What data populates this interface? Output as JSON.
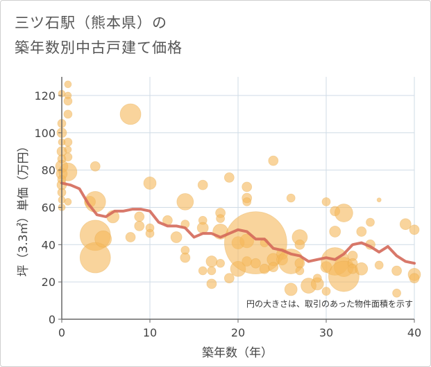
{
  "chart_data": {
    "type": "scatter",
    "title_lines": [
      "三ツ石駅（熊本県）の",
      "築年数別中古戸建て価格"
    ],
    "xlabel": "築年数（年）",
    "ylabel": "坪（3.3㎡）単価（万円）",
    "xlim": [
      0,
      40
    ],
    "ylim": [
      0,
      130
    ],
    "xticks": [
      "0",
      "10",
      "20",
      "30",
      "40"
    ],
    "yticks": [
      "0",
      "20",
      "40",
      "60",
      "80",
      "100",
      "120"
    ],
    "xtick_values": [
      0,
      10,
      20,
      30,
      40
    ],
    "ytick_values": [
      0,
      20,
      40,
      60,
      80,
      100,
      120
    ],
    "grid": true,
    "note": "円の大きさは、取引のあった物件面積を示す",
    "bubble_color": "#f5b75a",
    "line_color": "#d4695a",
    "bubbles": [
      {
        "x": 0,
        "y": 121,
        "s": 5
      },
      {
        "x": 0,
        "y": 105,
        "s": 6
      },
      {
        "x": 0,
        "y": 100,
        "s": 7
      },
      {
        "x": 0,
        "y": 95,
        "s": 5
      },
      {
        "x": 0,
        "y": 90,
        "s": 7
      },
      {
        "x": 0,
        "y": 86,
        "s": 6
      },
      {
        "x": 0,
        "y": 82,
        "s": 9
      },
      {
        "x": 0,
        "y": 78,
        "s": 8
      },
      {
        "x": 0,
        "y": 75,
        "s": 6
      },
      {
        "x": 0,
        "y": 72,
        "s": 7
      },
      {
        "x": 0,
        "y": 68,
        "s": 6
      },
      {
        "x": 0,
        "y": 64,
        "s": 5
      },
      {
        "x": 0,
        "y": 60,
        "s": 5
      },
      {
        "x": 0.7,
        "y": 126,
        "s": 5
      },
      {
        "x": 0.7,
        "y": 120,
        "s": 5
      },
      {
        "x": 0.7,
        "y": 117,
        "s": 6
      },
      {
        "x": 0.7,
        "y": 110,
        "s": 6
      },
      {
        "x": 0.7,
        "y": 95,
        "s": 6
      },
      {
        "x": 0.7,
        "y": 91,
        "s": 5
      },
      {
        "x": 0.7,
        "y": 87,
        "s": 6
      },
      {
        "x": 0.7,
        "y": 79,
        "s": 13
      },
      {
        "x": 0.7,
        "y": 63,
        "s": 5
      },
      {
        "x": 3.2,
        "y": 63,
        "s": 8
      },
      {
        "x": 3.8,
        "y": 82,
        "s": 7
      },
      {
        "x": 3.8,
        "y": 63,
        "s": 15
      },
      {
        "x": 3.8,
        "y": 45,
        "s": 22
      },
      {
        "x": 3.8,
        "y": 33,
        "s": 22
      },
      {
        "x": 4.7,
        "y": 43,
        "s": 12
      },
      {
        "x": 5.8,
        "y": 55,
        "s": 9
      },
      {
        "x": 7.8,
        "y": 110,
        "s": 15
      },
      {
        "x": 7.8,
        "y": 44,
        "s": 7
      },
      {
        "x": 8.8,
        "y": 50,
        "s": 7
      },
      {
        "x": 8.8,
        "y": 55,
        "s": 7
      },
      {
        "x": 10,
        "y": 73,
        "s": 9
      },
      {
        "x": 10,
        "y": 49,
        "s": 6
      },
      {
        "x": 10,
        "y": 46,
        "s": 6
      },
      {
        "x": 12,
        "y": 53,
        "s": 7
      },
      {
        "x": 13,
        "y": 44,
        "s": 8
      },
      {
        "x": 14,
        "y": 63,
        "s": 12
      },
      {
        "x": 14,
        "y": 51,
        "s": 6
      },
      {
        "x": 14,
        "y": 37,
        "s": 6
      },
      {
        "x": 14,
        "y": 33,
        "s": 7
      },
      {
        "x": 16,
        "y": 72,
        "s": 7
      },
      {
        "x": 16,
        "y": 53,
        "s": 6
      },
      {
        "x": 16,
        "y": 49,
        "s": 8
      },
      {
        "x": 16,
        "y": 26,
        "s": 6
      },
      {
        "x": 17,
        "y": 31,
        "s": 8
      },
      {
        "x": 17,
        "y": 26,
        "s": 6
      },
      {
        "x": 17,
        "y": 19,
        "s": 7
      },
      {
        "x": 18,
        "y": 57,
        "s": 7
      },
      {
        "x": 18,
        "y": 54,
        "s": 6
      },
      {
        "x": 18,
        "y": 47,
        "s": 11
      },
      {
        "x": 18,
        "y": 30,
        "s": 6
      },
      {
        "x": 19,
        "y": 76,
        "s": 7
      },
      {
        "x": 19,
        "y": 22,
        "s": 7
      },
      {
        "x": 20,
        "y": 41,
        "s": 9
      },
      {
        "x": 20,
        "y": 27,
        "s": 11
      },
      {
        "x": 21,
        "y": 71,
        "s": 7
      },
      {
        "x": 21,
        "y": 65,
        "s": 7
      },
      {
        "x": 21,
        "y": 63,
        "s": 6
      },
      {
        "x": 21,
        "y": 42,
        "s": 10
      },
      {
        "x": 21,
        "y": 31,
        "s": 7
      },
      {
        "x": 22,
        "y": 41,
        "s": 45
      },
      {
        "x": 22,
        "y": 30,
        "s": 7
      },
      {
        "x": 23,
        "y": 41,
        "s": 6
      },
      {
        "x": 23,
        "y": 27,
        "s": 7
      },
      {
        "x": 24,
        "y": 85,
        "s": 7
      },
      {
        "x": 24,
        "y": 32,
        "s": 9
      },
      {
        "x": 24,
        "y": 28,
        "s": 7
      },
      {
        "x": 25,
        "y": 35,
        "s": 8
      },
      {
        "x": 25,
        "y": 32,
        "s": 8
      },
      {
        "x": 26,
        "y": 31,
        "s": 18
      },
      {
        "x": 26,
        "y": 16,
        "s": 9
      },
      {
        "x": 26,
        "y": 65,
        "s": 6
      },
      {
        "x": 27,
        "y": 44,
        "s": 11
      },
      {
        "x": 27,
        "y": 40,
        "s": 7
      },
      {
        "x": 27,
        "y": 30,
        "s": 7
      },
      {
        "x": 27,
        "y": 26,
        "s": 6
      },
      {
        "x": 28,
        "y": 18,
        "s": 11
      },
      {
        "x": 29,
        "y": 19,
        "s": 9
      },
      {
        "x": 29,
        "y": 22,
        "s": 6
      },
      {
        "x": 30,
        "y": 63,
        "s": 6
      },
      {
        "x": 30,
        "y": 28,
        "s": 8
      },
      {
        "x": 30,
        "y": 15,
        "s": 6
      },
      {
        "x": 31,
        "y": 58,
        "s": 7
      },
      {
        "x": 31,
        "y": 47,
        "s": 8
      },
      {
        "x": 31,
        "y": 31,
        "s": 20
      },
      {
        "x": 32,
        "y": 57,
        "s": 13
      },
      {
        "x": 32,
        "y": 28,
        "s": 14
      },
      {
        "x": 32,
        "y": 23,
        "s": 22
      },
      {
        "x": 33,
        "y": 34,
        "s": 7
      },
      {
        "x": 33,
        "y": 30,
        "s": 7
      },
      {
        "x": 33,
        "y": 27,
        "s": 7
      },
      {
        "x": 34,
        "y": 47,
        "s": 7
      },
      {
        "x": 34,
        "y": 27,
        "s": 9
      },
      {
        "x": 35,
        "y": 52,
        "s": 6
      },
      {
        "x": 35,
        "y": 40,
        "s": 7
      },
      {
        "x": 36,
        "y": 64,
        "s": 3
      },
      {
        "x": 36,
        "y": 29,
        "s": 6
      },
      {
        "x": 38,
        "y": 26,
        "s": 7
      },
      {
        "x": 38,
        "y": 14,
        "s": 6
      },
      {
        "x": 39,
        "y": 51,
        "s": 8
      },
      {
        "x": 40,
        "y": 48,
        "s": 7
      },
      {
        "x": 40,
        "y": 24,
        "s": 9
      },
      {
        "x": 40,
        "y": 22,
        "s": 7
      }
    ],
    "line": {
      "x": [
        0,
        1,
        2,
        3,
        4,
        5,
        6,
        7,
        8,
        9,
        10,
        11,
        12,
        13,
        14,
        15,
        16,
        17,
        18,
        19,
        20,
        21,
        22,
        23,
        24,
        25,
        26,
        27,
        28,
        29,
        30,
        31,
        32,
        33,
        34,
        35,
        36,
        37,
        38,
        39,
        40
      ],
      "y": [
        73,
        72,
        70,
        62,
        56,
        55,
        58,
        58,
        59,
        59,
        58,
        52,
        50,
        50,
        49,
        44,
        46,
        46,
        44,
        46,
        48,
        47,
        43,
        43,
        38,
        37,
        35,
        34,
        31,
        32,
        33,
        32,
        35,
        40,
        41,
        39,
        36,
        39,
        34,
        31,
        30
      ]
    }
  }
}
